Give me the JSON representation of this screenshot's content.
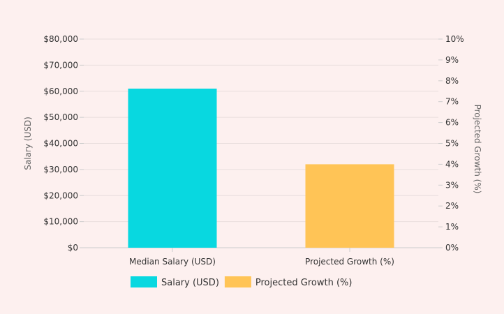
{
  "chart_data": {
    "type": "bar",
    "categories": [
      "Median Salary (USD)",
      "Projected Growth (%)"
    ],
    "series": [
      {
        "name": "Salary (USD)",
        "axis": "left",
        "category_index": 0,
        "value": 61000,
        "color": "#08d8e0"
      },
      {
        "name": "Projected Growth (%)",
        "axis": "right",
        "category_index": 1,
        "value": 4,
        "color": "#ffc456"
      }
    ],
    "y_left": {
      "label": "Salary (USD)",
      "lim": [
        0,
        80000
      ],
      "ticks": [
        0,
        10000,
        20000,
        30000,
        40000,
        50000,
        60000,
        70000,
        80000
      ],
      "tick_labels": [
        "$0",
        "$10,000",
        "$20,000",
        "$30,000",
        "$40,000",
        "$50,000",
        "$60,000",
        "$70,000",
        "$80,000"
      ]
    },
    "y_right": {
      "label": "Projected Growth (%)",
      "lim": [
        0,
        10
      ],
      "ticks": [
        0,
        1,
        2,
        3,
        4,
        5,
        6,
        7,
        8,
        9,
        10
      ],
      "tick_labels": [
        "0%",
        "1%",
        "2%",
        "3%",
        "4%",
        "5%",
        "6%",
        "7%",
        "8%",
        "9%",
        "10%"
      ]
    },
    "grid": true,
    "legend_position": "bottom"
  },
  "colors": {
    "background": "#fdf0ef",
    "grid": "#e9dedd"
  }
}
